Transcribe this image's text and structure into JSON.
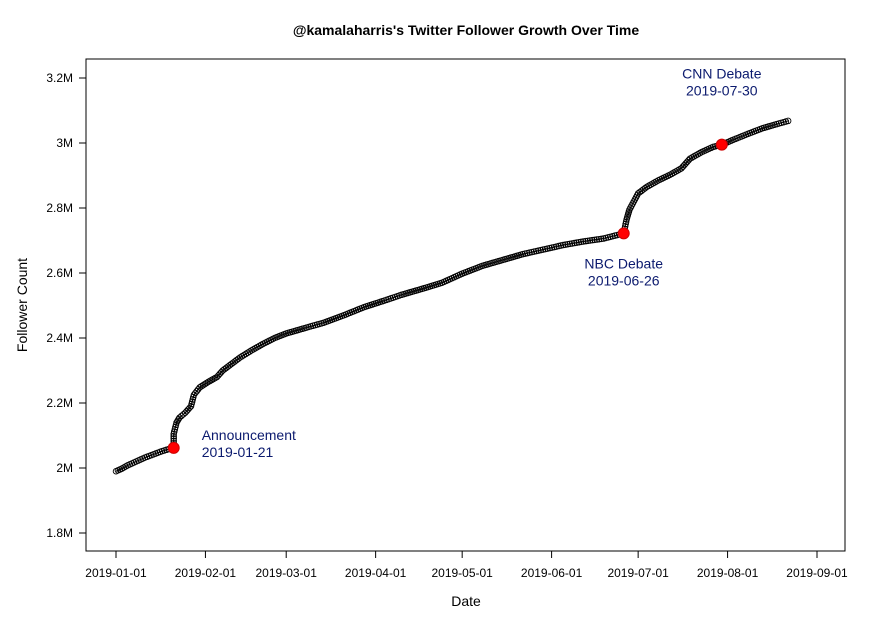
{
  "chart_data": {
    "type": "scatter",
    "title": "@kamalaharris's Twitter Follower Growth Over Time",
    "xlabel": "Date",
    "ylabel": "Follower Count",
    "xlim": [
      "2019-01-01",
      "2019-09-01"
    ],
    "ylim": [
      1800000,
      3200000
    ],
    "x_ticks": [
      "2019-01-01",
      "2019-02-01",
      "2019-03-01",
      "2019-04-01",
      "2019-05-01",
      "2019-06-01",
      "2019-07-01",
      "2019-08-01",
      "2019-09-01"
    ],
    "y_ticks": [
      {
        "value": 1800000,
        "label": "1.8M"
      },
      {
        "value": 2000000,
        "label": "2M"
      },
      {
        "value": 2200000,
        "label": "2.2M"
      },
      {
        "value": 2400000,
        "label": "2.4M"
      },
      {
        "value": 2600000,
        "label": "2.6M"
      },
      {
        "value": 2800000,
        "label": "2.8M"
      },
      {
        "value": 3000000,
        "label": "3M"
      },
      {
        "value": 3200000,
        "label": "3.2M"
      }
    ],
    "series": [
      {
        "style": "open-circle-line",
        "color": "#000000",
        "points": [
          [
            "2019-01-01",
            1990000
          ],
          [
            "2019-01-03",
            1998000
          ],
          [
            "2019-01-05",
            2008000
          ],
          [
            "2019-01-08",
            2020000
          ],
          [
            "2019-01-11",
            2032000
          ],
          [
            "2019-01-14",
            2042000
          ],
          [
            "2019-01-17",
            2052000
          ],
          [
            "2019-01-20",
            2060000
          ],
          [
            "2019-01-21",
            2062000
          ],
          [
            "2019-01-21",
            2105000
          ],
          [
            "2019-01-22",
            2140000
          ],
          [
            "2019-01-23",
            2155000
          ],
          [
            "2019-01-25",
            2170000
          ],
          [
            "2019-01-27",
            2190000
          ],
          [
            "2019-01-28",
            2225000
          ],
          [
            "2019-01-30",
            2248000
          ],
          [
            "2019-02-02",
            2265000
          ],
          [
            "2019-02-05",
            2280000
          ],
          [
            "2019-02-07",
            2300000
          ],
          [
            "2019-02-10",
            2320000
          ],
          [
            "2019-02-13",
            2340000
          ],
          [
            "2019-02-17",
            2362000
          ],
          [
            "2019-02-21",
            2382000
          ],
          [
            "2019-02-25",
            2400000
          ],
          [
            "2019-03-01",
            2414000
          ],
          [
            "2019-03-08",
            2432000
          ],
          [
            "2019-03-14",
            2447000
          ],
          [
            "2019-03-21",
            2470000
          ],
          [
            "2019-03-28",
            2495000
          ],
          [
            "2019-04-04",
            2515000
          ],
          [
            "2019-04-10",
            2533000
          ],
          [
            "2019-04-17",
            2551000
          ],
          [
            "2019-04-24",
            2570000
          ],
          [
            "2019-05-01",
            2598000
          ],
          [
            "2019-05-08",
            2622000
          ],
          [
            "2019-05-15",
            2640000
          ],
          [
            "2019-05-22",
            2658000
          ],
          [
            "2019-05-29",
            2672000
          ],
          [
            "2019-06-05",
            2686000
          ],
          [
            "2019-06-12",
            2697000
          ],
          [
            "2019-06-19",
            2706000
          ],
          [
            "2019-06-26",
            2722000
          ],
          [
            "2019-06-27",
            2765000
          ],
          [
            "2019-06-28",
            2795000
          ],
          [
            "2019-07-01",
            2845000
          ],
          [
            "2019-07-04",
            2865000
          ],
          [
            "2019-07-08",
            2885000
          ],
          [
            "2019-07-12",
            2902000
          ],
          [
            "2019-07-16",
            2922000
          ],
          [
            "2019-07-19",
            2952000
          ],
          [
            "2019-07-23",
            2972000
          ],
          [
            "2019-07-27",
            2988000
          ],
          [
            "2019-07-30",
            2995000
          ],
          [
            "2019-08-03",
            3010000
          ],
          [
            "2019-08-08",
            3028000
          ],
          [
            "2019-08-13",
            3045000
          ],
          [
            "2019-08-18",
            3058000
          ],
          [
            "2019-08-22",
            3068000
          ]
        ]
      },
      {
        "style": "red-marker",
        "color": "#ff0000",
        "points": [
          [
            "2019-01-21",
            2062000
          ],
          [
            "2019-06-26",
            2722000
          ],
          [
            "2019-07-30",
            2995000
          ]
        ]
      }
    ],
    "annotations": [
      {
        "line1": "Announcement",
        "line2": "2019-01-21",
        "x": "2019-01-21",
        "y": 2062000,
        "align": "start"
      },
      {
        "line1": "NBC Debate",
        "line2": "2019-06-26",
        "x": "2019-06-26",
        "y": 2722000,
        "align": "middle"
      },
      {
        "line1": "CNN Debate",
        "line2": "2019-07-30",
        "x": "2019-07-30",
        "y": 2995000,
        "align": "middle"
      }
    ]
  }
}
